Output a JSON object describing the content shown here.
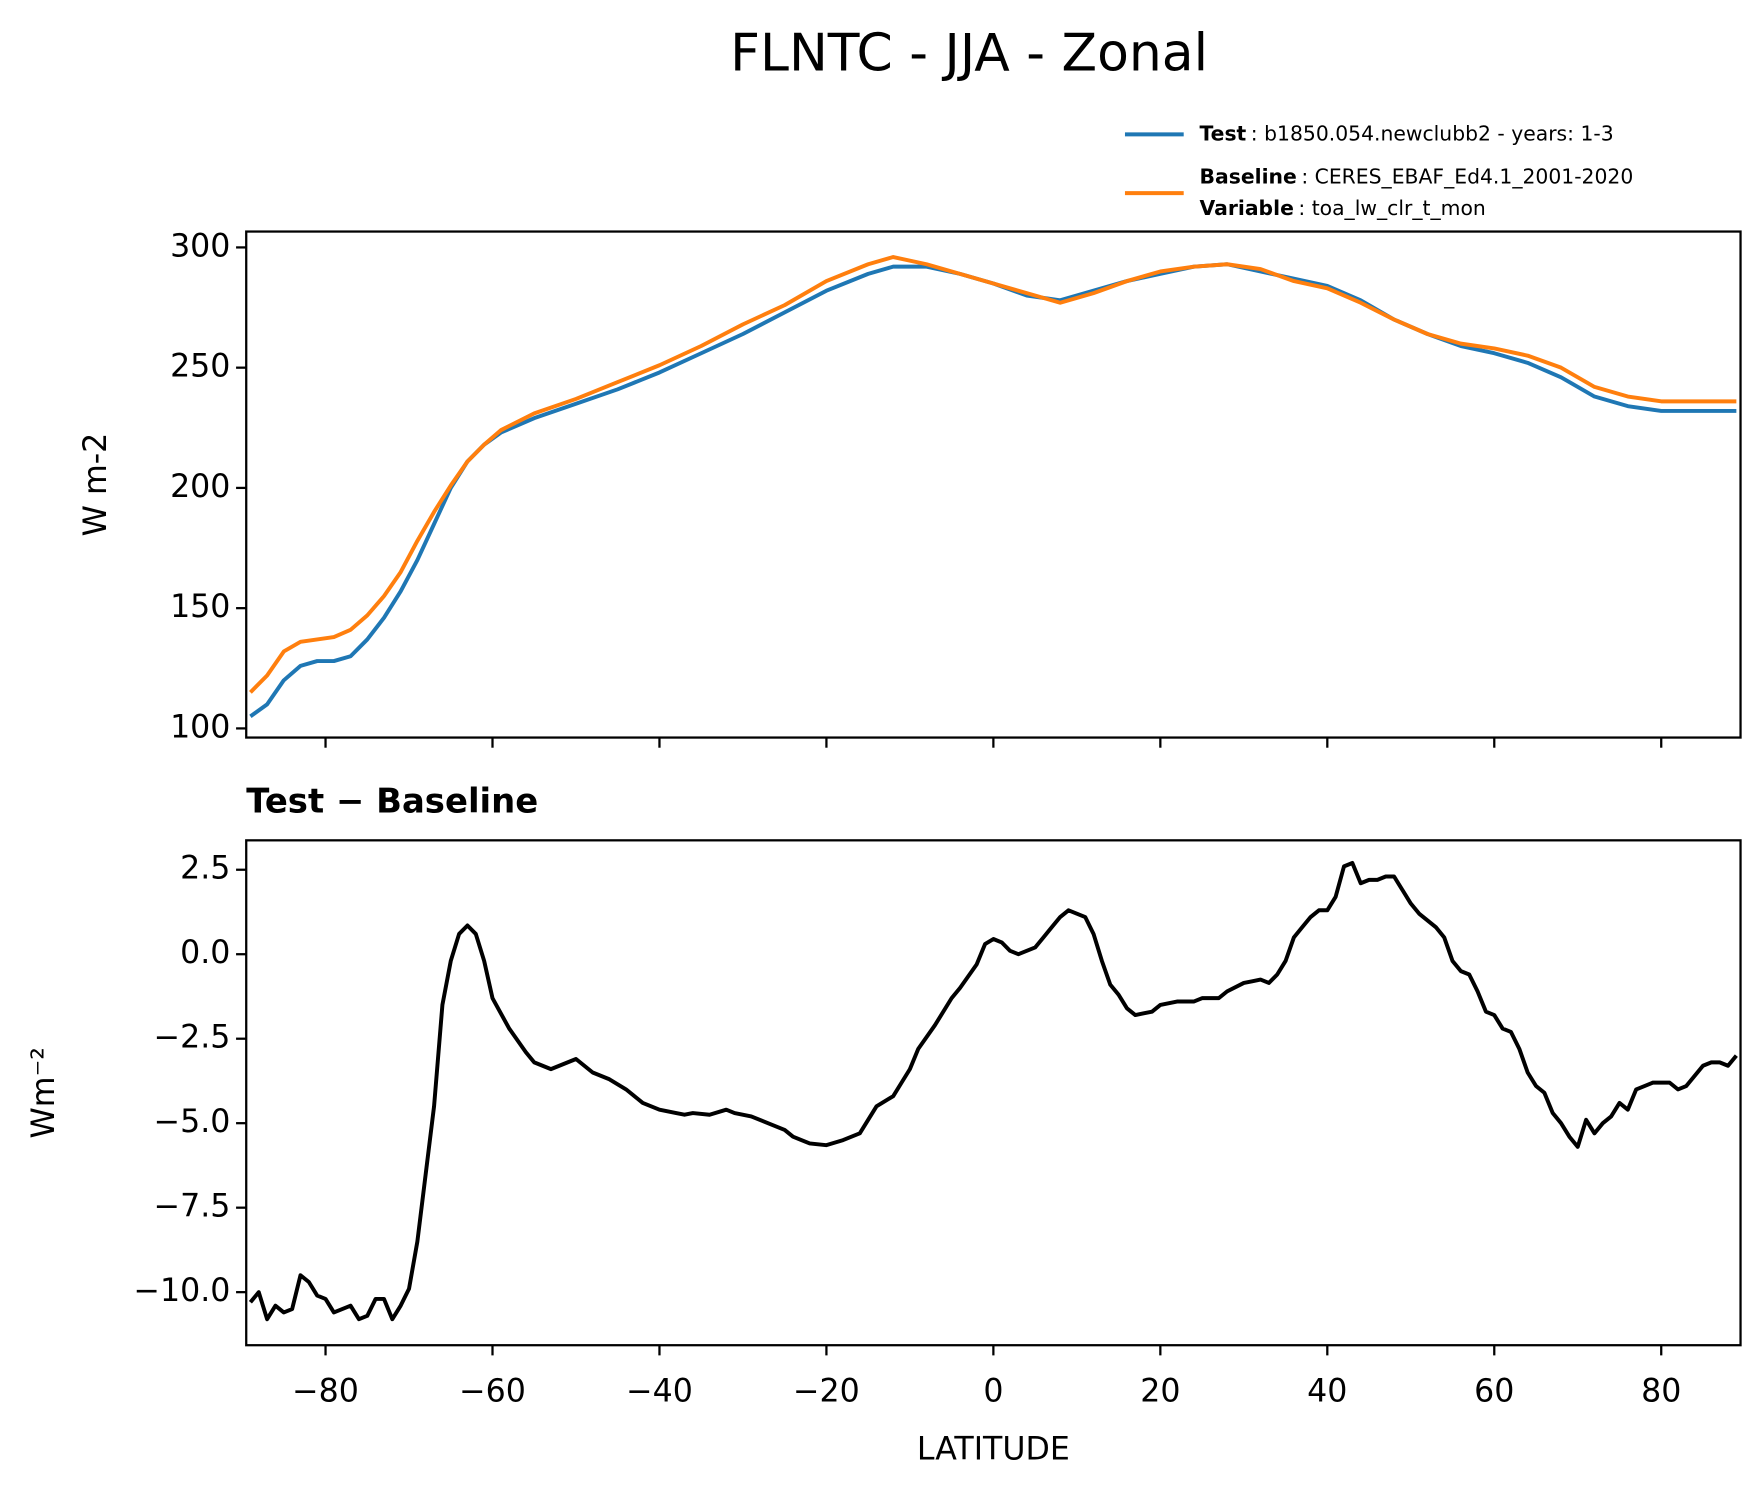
{
  "title": "FLNTC - JJA - Zonal",
  "chart_data": [
    {
      "type": "line",
      "ylabel": "W m-2",
      "xlim": [
        -89.5,
        89.5
      ],
      "ylim": [
        96.2,
        306.6
      ],
      "xticks": [
        -80,
        -60,
        -40,
        -20,
        0,
        20,
        40,
        60,
        80
      ],
      "yticks": [
        100,
        150,
        200,
        250,
        300
      ],
      "x": [
        -89,
        -87,
        -85,
        -83,
        -81,
        -79,
        -77,
        -75,
        -73,
        -71,
        -69,
        -67,
        -65,
        -63,
        -61,
        -59,
        -55,
        -50,
        -45,
        -40,
        -35,
        -30,
        -25,
        -20,
        -15,
        -12,
        -8,
        -4,
        0,
        4,
        8,
        12,
        16,
        20,
        24,
        28,
        32,
        36,
        40,
        44,
        48,
        52,
        56,
        60,
        64,
        68,
        72,
        76,
        80,
        84,
        89
      ],
      "series": [
        {
          "name": "Test",
          "detail": ": b1850.054.newclubb2 - years: 1-3",
          "color": "#1f77b4",
          "values": [
            105,
            110,
            120,
            126,
            128,
            128,
            130,
            137,
            146,
            157,
            170,
            185,
            200,
            211,
            218,
            223,
            229,
            235,
            241,
            248,
            256,
            264,
            273,
            282,
            289,
            292,
            292,
            289,
            285,
            280,
            278,
            282,
            286,
            289,
            292,
            293,
            290,
            287,
            284,
            278,
            270,
            264,
            259,
            256,
            252,
            246,
            238,
            234,
            232,
            232,
            232
          ]
        },
        {
          "name": "Baseline",
          "detail": ": CERES_EBAF_Ed4.1_2001-2020",
          "color": "#ff7f0e",
          "values": [
            115,
            122,
            132,
            136,
            137,
            138,
            141,
            147,
            155,
            165,
            178,
            190,
            201,
            211,
            218,
            224,
            231,
            237,
            244,
            251,
            259,
            268,
            276,
            286,
            293,
            296,
            293,
            289,
            285,
            281,
            277,
            281,
            286,
            290,
            292,
            293,
            291,
            286,
            283,
            277,
            270,
            264,
            260,
            258,
            255,
            250,
            242,
            238,
            236,
            236,
            236
          ]
        }
      ],
      "legend_extra": [
        {
          "name": "Variable",
          "detail": ": toa_lw_clr_t_mon"
        }
      ]
    },
    {
      "type": "line",
      "title": "Test − Baseline",
      "ylabel": "Wm⁻²",
      "xlabel": "LATITUDE",
      "color": "#000000",
      "xlim": [
        -89.5,
        89.5
      ],
      "ylim": [
        -11.57,
        3.37
      ],
      "xticks": [
        {
          "value": -80,
          "label": "−80"
        },
        {
          "value": -60,
          "label": "−60"
        },
        {
          "value": -40,
          "label": "−40"
        },
        {
          "value": -20,
          "label": "−20"
        },
        0,
        20,
        40,
        60,
        80
      ],
      "yticks": [
        {
          "value": -10,
          "label": "−10.0"
        },
        {
          "value": -7.5,
          "label": "−7.5"
        },
        {
          "value": -5,
          "label": "−5.0"
        },
        {
          "value": -2.5,
          "label": "−2.5"
        },
        {
          "value": 0,
          "label": "0.0"
        },
        2.5
      ],
      "x": [
        -89,
        -88,
        -87,
        -86,
        -85,
        -84,
        -83,
        -82,
        -81,
        -80,
        -79,
        -78,
        -77,
        -76,
        -75,
        -74,
        -73,
        -72,
        -71,
        -70,
        -69,
        -68,
        -67,
        -66,
        -65,
        -64,
        -63,
        -62,
        -61,
        -60,
        -58,
        -56,
        -55,
        -53,
        -51,
        -50,
        -49,
        -48,
        -46,
        -44,
        -42,
        -40,
        -38,
        -37,
        -36,
        -34,
        -32,
        -31,
        -29,
        -27,
        -25,
        -24,
        -22,
        -20,
        -18,
        -16,
        -15,
        -14,
        -12,
        -11,
        -10,
        -9,
        -7,
        -5,
        -4,
        -2,
        -1,
        0,
        1,
        2,
        3,
        5,
        6,
        7,
        8,
        9,
        10,
        11,
        12,
        13,
        14,
        15,
        16,
        17,
        18,
        19,
        20,
        22,
        24,
        25,
        27,
        28,
        30,
        31,
        32,
        33,
        34,
        35,
        36,
        37,
        38,
        39,
        40,
        41,
        42,
        43,
        44,
        45,
        46,
        47,
        48,
        49,
        50,
        51,
        52,
        53,
        54,
        55,
        56,
        57,
        58,
        59,
        60,
        61,
        62,
        63,
        64,
        65,
        66,
        67,
        68,
        69,
        70,
        71,
        72,
        73,
        74,
        75,
        76,
        77,
        78,
        79,
        81,
        82,
        83,
        84,
        85,
        86,
        87,
        88,
        89
      ],
      "values": [
        -10.3,
        -10.0,
        -10.8,
        -10.4,
        -10.6,
        -10.5,
        -9.5,
        -9.7,
        -10.1,
        -10.2,
        -10.6,
        -10.5,
        -10.4,
        -10.8,
        -10.7,
        -10.2,
        -10.2,
        -10.8,
        -10.4,
        -9.9,
        -8.5,
        -6.5,
        -4.5,
        -1.5,
        -0.2,
        0.6,
        0.85,
        0.6,
        -0.2,
        -1.3,
        -2.2,
        -2.9,
        -3.2,
        -3.4,
        -3.2,
        -3.1,
        -3.3,
        -3.5,
        -3.7,
        -4.0,
        -4.4,
        -4.6,
        -4.7,
        -4.75,
        -4.7,
        -4.75,
        -4.6,
        -4.7,
        -4.8,
        -5.0,
        -5.2,
        -5.4,
        -5.6,
        -5.65,
        -5.5,
        -5.3,
        -4.9,
        -4.5,
        -4.2,
        -3.8,
        -3.4,
        -2.8,
        -2.1,
        -1.3,
        -1.0,
        -0.3,
        0.3,
        0.45,
        0.35,
        0.1,
        0.0,
        0.2,
        0.5,
        0.8,
        1.1,
        1.3,
        1.2,
        1.1,
        0.6,
        -0.2,
        -0.9,
        -1.2,
        -1.6,
        -1.8,
        -1.75,
        -1.7,
        -1.5,
        -1.4,
        -1.4,
        -1.3,
        -1.3,
        -1.1,
        -0.85,
        -0.8,
        -0.75,
        -0.85,
        -0.6,
        -0.2,
        0.5,
        0.8,
        1.1,
        1.3,
        1.3,
        1.7,
        2.6,
        2.7,
        2.1,
        2.2,
        2.2,
        2.3,
        2.3,
        1.9,
        1.5,
        1.2,
        1.0,
        0.8,
        0.5,
        -0.2,
        -0.5,
        -0.6,
        -1.1,
        -1.7,
        -1.8,
        -2.2,
        -2.3,
        -2.8,
        -3.5,
        -3.9,
        -4.1,
        -4.7,
        -5.0,
        -5.4,
        -5.7,
        -4.9,
        -5.3,
        -5.0,
        -4.8,
        -4.4,
        -4.6,
        -4.0,
        -3.9,
        -3.8,
        -3.8,
        -4.0,
        -3.9,
        -3.6,
        -3.3,
        -3.2,
        -3.2,
        -3.3,
        -3.0
      ]
    }
  ]
}
